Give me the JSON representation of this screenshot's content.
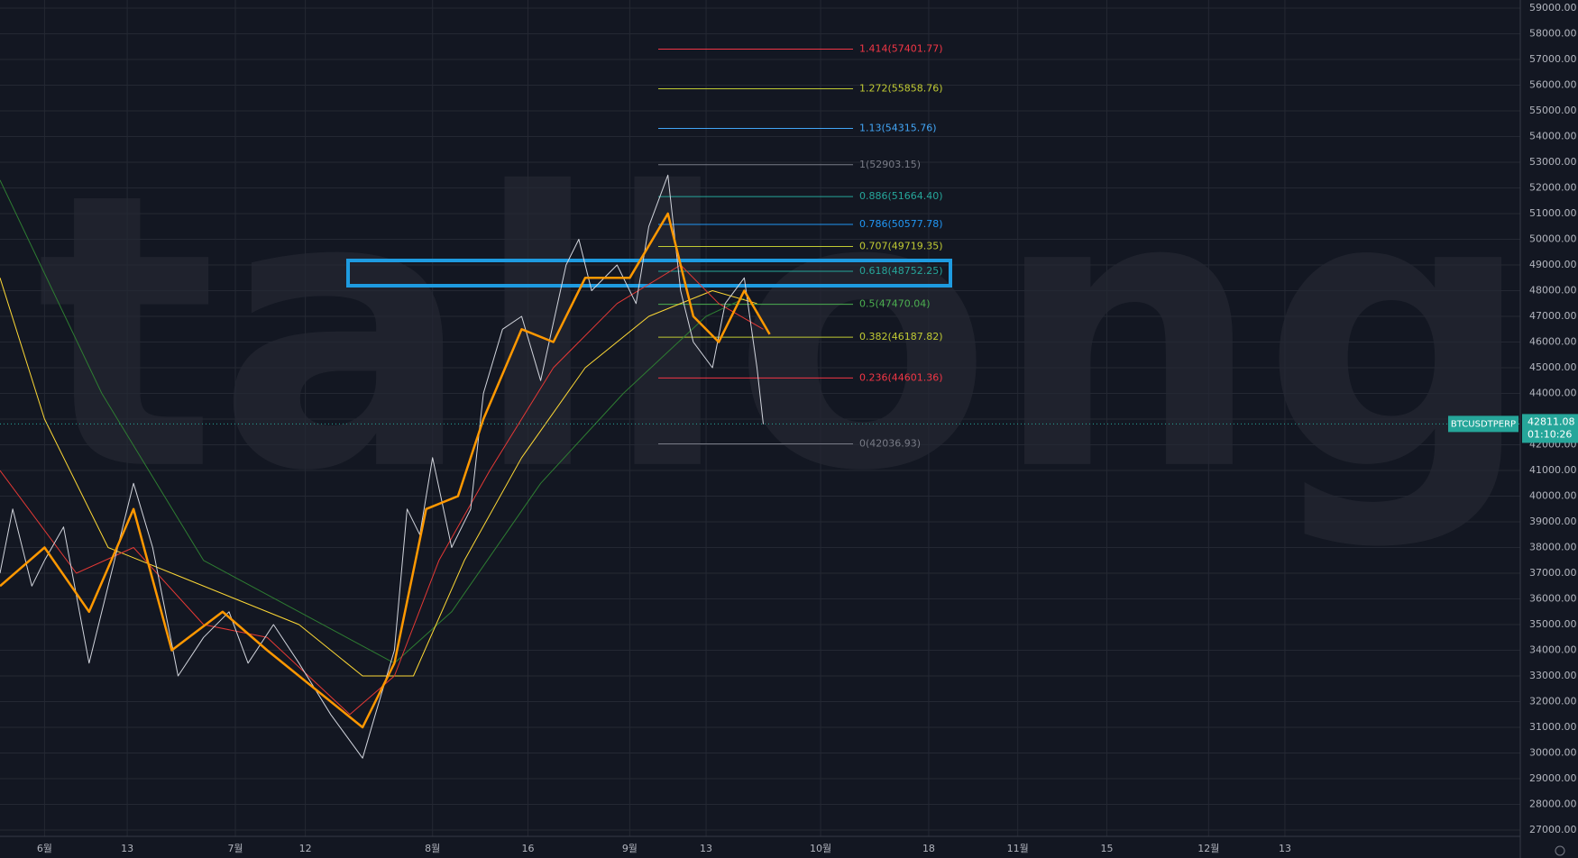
{
  "chart_data": {
    "type": "line",
    "watermark": "tallong",
    "symbol": "BTCUSDTPERP",
    "last_price": {
      "value": 42811.08,
      "label": "42811.08"
    },
    "countdown": "01:10:26",
    "xlim": [
      -7,
      232
    ],
    "xticks": [
      {
        "value": 0,
        "label": "6월"
      },
      13,
      {
        "value": 30,
        "label": "7월"
      },
      {
        "value": 41,
        "label": "12"
      },
      {
        "value": 61,
        "label": "8월"
      },
      {
        "value": 76,
        "label": "16"
      },
      {
        "value": 92,
        "label": "9월"
      },
      {
        "value": 104,
        "label": "13"
      },
      {
        "value": 122,
        "label": "10월"
      },
      {
        "value": 139,
        "label": "18"
      },
      {
        "value": 153,
        "label": "11월"
      },
      {
        "value": 167,
        "label": "15"
      },
      {
        "value": 183,
        "label": "12월"
      },
      {
        "value": 195,
        "label": "13"
      }
    ],
    "ylim": [
      27000,
      59000
    ],
    "yticks": [
      {
        "value": 27000,
        "label": "27000.00"
      },
      {
        "value": 28000,
        "label": "28000.00"
      },
      {
        "value": 29000,
        "label": "29000.00"
      },
      {
        "value": 30000,
        "label": "30000.00"
      },
      {
        "value": 31000,
        "label": "31000.00"
      },
      {
        "value": 32000,
        "label": "32000.00"
      },
      {
        "value": 33000,
        "label": "33000.00"
      },
      {
        "value": 34000,
        "label": "34000.00"
      },
      {
        "value": 35000,
        "label": "35000.00"
      },
      {
        "value": 36000,
        "label": "36000.00"
      },
      {
        "value": 37000,
        "label": "37000.00"
      },
      {
        "value": 38000,
        "label": "38000.00"
      },
      {
        "value": 39000,
        "label": "39000.00"
      },
      {
        "value": 40000,
        "label": "40000.00"
      },
      {
        "value": 41000,
        "label": "41000.00"
      },
      {
        "value": 42000,
        "label": "42000.00"
      },
      {
        "value": 43000,
        "label": "43000.00"
      },
      {
        "value": 44000,
        "label": "44000.00"
      },
      {
        "value": 45000,
        "label": "45000.00"
      },
      {
        "value": 46000,
        "label": "46000.00"
      },
      {
        "value": 47000,
        "label": "47000.00"
      },
      {
        "value": 48000,
        "label": "48000.00"
      },
      {
        "value": 49000,
        "label": "49000.00"
      },
      {
        "value": 50000,
        "label": "50000.00"
      },
      {
        "value": 51000,
        "label": "51000.00"
      },
      {
        "value": 52000,
        "label": "52000.00"
      },
      {
        "value": 53000,
        "label": "53000.00"
      },
      {
        "value": 54000,
        "label": "54000.00"
      },
      {
        "value": 55000,
        "label": "55000.00"
      },
      {
        "value": 56000,
        "label": "56000.00"
      },
      {
        "value": 57000,
        "label": "57000.00"
      },
      {
        "value": 58000,
        "label": "58000.00"
      },
      {
        "value": 59000,
        "label": "59000.00"
      }
    ],
    "grid": true,
    "series": [
      {
        "color": "#2e7d32",
        "width": 1,
        "x": [
          -7,
          9,
          25,
          40,
          55,
          64,
          78,
          91,
          104,
          110
        ],
        "values": [
          52300,
          44000,
          37500,
          35500,
          33500,
          35500,
          40500,
          44000,
          47000,
          47700
        ]
      },
      {
        "color": "#fdd835",
        "width": 1,
        "x": [
          -7,
          0,
          10,
          20,
          30,
          40,
          50,
          58,
          66,
          75,
          85,
          95,
          105,
          112
        ],
        "values": [
          48500,
          43000,
          38000,
          37000,
          36000,
          35000,
          33000,
          33000,
          37500,
          41500,
          45000,
          47000,
          48000,
          47500
        ]
      },
      {
        "color": "#e53935",
        "width": 1,
        "x": [
          -7,
          5,
          14,
          25,
          35,
          48,
          55,
          62,
          70,
          80,
          90,
          100,
          106,
          113
        ],
        "values": [
          41000,
          37000,
          38000,
          35000,
          34500,
          31500,
          33000,
          37500,
          41000,
          45000,
          47500,
          49000,
          47500,
          46500
        ]
      },
      {
        "color": "#d1d4dc",
        "width": 1,
        "x": [
          -7,
          -5,
          -2,
          0,
          3,
          7,
          10,
          14,
          17,
          21,
          25,
          29,
          32,
          36,
          40,
          45,
          50,
          52,
          55,
          57,
          59,
          61,
          64,
          67,
          69,
          72,
          75,
          78,
          82,
          84,
          86,
          90,
          93,
          95,
          98,
          100,
          102,
          105,
          107,
          110,
          112,
          113
        ],
        "values": [
          37000,
          39500,
          36500,
          37500,
          38800,
          33500,
          36500,
          40500,
          38000,
          33000,
          34500,
          35500,
          33500,
          35000,
          33500,
          31500,
          29800,
          31500,
          34000,
          39500,
          38500,
          41500,
          38000,
          39500,
          44000,
          46500,
          47000,
          44500,
          49000,
          50000,
          48000,
          49000,
          47500,
          50500,
          52500,
          48000,
          46000,
          45000,
          47500,
          48500,
          45000,
          42800
        ]
      },
      {
        "color": "#ff9800",
        "width": 2.5,
        "x": [
          -7,
          0,
          7,
          14,
          20,
          28,
          35,
          45,
          50,
          55,
          60,
          65,
          69,
          75,
          80,
          85,
          92,
          98,
          102,
          106,
          110,
          114
        ],
        "values": [
          36500,
          38000,
          35500,
          39500,
          34000,
          35500,
          34000,
          32000,
          31000,
          33500,
          39500,
          40000,
          43000,
          46500,
          46000,
          48500,
          48500,
          51000,
          47000,
          46000,
          48000,
          46300
        ]
      }
    ],
    "fib_levels": [
      {
        "value": 57401.77,
        "label": "1.414(57401.77)",
        "color": "#f23645"
      },
      {
        "value": 55858.76,
        "label": "1.272(55858.76)",
        "color": "#c0ca33"
      },
      {
        "value": 54315.76,
        "label": "1.13(54315.76)",
        "color": "#42a5f5"
      },
      {
        "value": 52903.15,
        "label": "1(52903.15)",
        "color": "#787b86"
      },
      {
        "value": 51664.4,
        "label": "0.886(51664.40)",
        "color": "#26a69a"
      },
      {
        "value": 50577.78,
        "label": "0.786(50577.78)",
        "color": "#2196f3"
      },
      {
        "value": 49719.35,
        "label": "0.707(49719.35)",
        "color": "#c0ca33"
      },
      {
        "value": 48752.25,
        "label": "0.618(48752.25)",
        "color": "#26a69a"
      },
      {
        "value": 47470.04,
        "label": "0.5(47470.04)",
        "color": "#4caf50"
      },
      {
        "value": 46187.82,
        "label": "0.382(46187.82)",
        "color": "#c0ca33"
      },
      {
        "value": 44601.36,
        "label": "0.236(44601.36)",
        "color": "#f23645"
      },
      {
        "value": 42036.93,
        "label": "0(42036.93)",
        "color": "#787b86"
      }
    ]
  }
}
